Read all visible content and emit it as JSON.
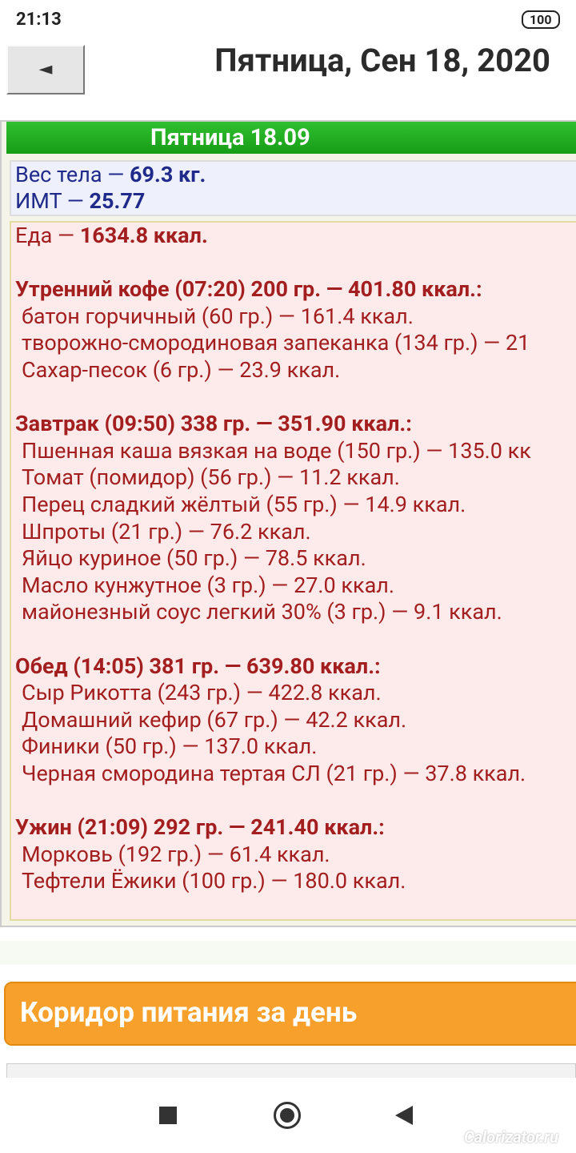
{
  "status_bar": {
    "time": "21:13",
    "battery": "100"
  },
  "header": {
    "back_button": "◄",
    "title": "Пятница, Сен 18, 2020"
  },
  "day": {
    "title": "Пятница 18.09",
    "weight_label": "Вес тела — ",
    "weight_value": "69.3 кг.",
    "bmi_label": "ИМТ — ",
    "bmi_value": "25.77",
    "food_label": "Еда — ",
    "food_value": "1634.8 ккал.",
    "meals": [
      {
        "header": "Утренний кофе (07:20) 200 гр. — 401.80 ккал.:",
        "items": [
          "батон горчичный (60 гр.) — 161.4 ккал.",
          "творожно-смородиновая запеканка (134 гр.) — 21",
          "Сахар-песок (6 гр.) — 23.9 ккал."
        ]
      },
      {
        "header": "Завтрак (09:50) 338 гр. — 351.90 ккал.:",
        "items": [
          "Пшенная каша вязкая на воде (150 гр.) — 135.0 кк",
          "Томат (помидор) (56 гр.) — 11.2 ккал.",
          "Перец сладкий жёлтый (55 гр.) — 14.9 ккал.",
          "Шпроты (21 гр.) — 76.2 ккал.",
          "Яйцо куриное (50 гр.) — 78.5 ккал.",
          "Масло кунжутное (3 гр.) — 27.0 ккал.",
          "майонезный соус легкий 30% (3 гр.) — 9.1 ккал."
        ]
      },
      {
        "header": "Обед (14:05) 381 гр. — 639.80 ккал.:",
        "items": [
          "Сыр Рикотта (243 гр.) — 422.8 ккал.",
          "Домашний кефир (67 гр.) — 42.2 ккал.",
          "Финики (50 гр.) — 137.0 ккал.",
          "Черная смородина тертая СЛ (21 гр.) — 37.8 ккал."
        ]
      },
      {
        "header": "Ужин (21:09) 292 гр. — 241.40 ккал.:",
        "items": [
          "Морковь (192 гр.) — 61.4 ккал.",
          "Тефтели Ёжики (100 гр.) — 180.0 ккал."
        ]
      }
    ]
  },
  "section": {
    "title": "Коридор питания за день"
  },
  "watermark": "Calorizator.ru"
}
